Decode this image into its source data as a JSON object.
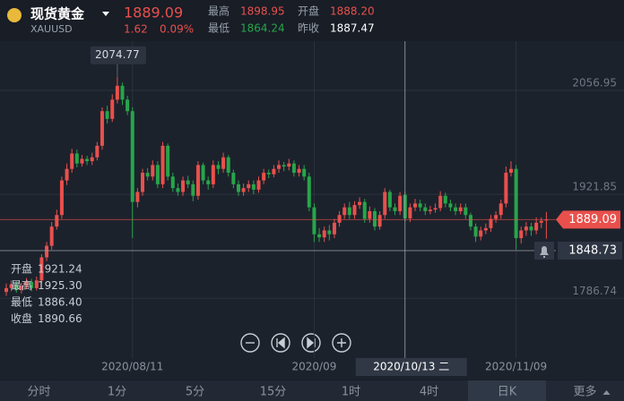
{
  "header": {
    "name": "现货黄金",
    "symbol": "XAUUSD",
    "price": "1889.09",
    "change": "1.62",
    "change_pct": "0.09%",
    "stats": [
      {
        "label": "最高",
        "value": "1898.95"
      },
      {
        "label": "开盘",
        "value": "1888.20"
      },
      {
        "label": "最低",
        "value": "1864.24"
      },
      {
        "label": "昨收",
        "value": "1887.47"
      }
    ]
  },
  "chart_data": {
    "type": "candlestick",
    "open": [
      1795,
      1800,
      1805,
      1798,
      1803,
      1808,
      1800,
      1810,
      1840,
      1855,
      1880,
      1895,
      1940,
      1955,
      1975,
      1962,
      1968,
      1965,
      1970,
      1985,
      2030,
      2020,
      2045,
      2063,
      2045,
      2030,
      1912,
      1925,
      1950,
      1945,
      1960,
      1935,
      1985,
      1945,
      1930,
      1925,
      1940,
      1935,
      1920,
      1960,
      1940,
      1935,
      1960,
      1955,
      1970,
      1950,
      1935,
      1925,
      1930,
      1935,
      1928,
      1940,
      1950,
      1948,
      1955,
      1960,
      1958,
      1962,
      1950,
      1955,
      1945,
      1905,
      1870,
      1866,
      1875,
      1870,
      1885,
      1895,
      1905,
      1895,
      1908,
      1912,
      1890,
      1900,
      1880,
      1895,
      1925,
      1905,
      1900,
      1921.24,
      1890.66,
      1905,
      1910,
      1905,
      1900,
      1902,
      1904,
      1920,
      1910,
      1905,
      1900,
      1905,
      1895,
      1880,
      1867,
      1875,
      1878,
      1890,
      1895,
      1910,
      1950,
      1955,
      1865,
      1875,
      1880,
      1875,
      1885,
      1888.2
    ],
    "high": [
      1806,
      1810,
      1809,
      1807,
      1813,
      1812,
      1815,
      1844,
      1860,
      1886,
      1902,
      1945,
      1962,
      1981,
      1980,
      1973,
      1972,
      1976,
      1990,
      2035,
      2037,
      2052,
      2074.77,
      2067,
      2050,
      2035,
      1930,
      1955,
      1956,
      1966,
      1965,
      1990,
      1988,
      1950,
      1936,
      1945,
      1946,
      1940,
      1965,
      1963,
      1945,
      1966,
      1965,
      1976,
      1973,
      1954,
      1940,
      1936,
      1940,
      1940,
      1945,
      1955,
      1954,
      1960,
      1966,
      1964,
      1968,
      1966,
      1960,
      1960,
      1950,
      1910,
      1878,
      1880,
      1882,
      1890,
      1900,
      1910,
      1912,
      1913,
      1918,
      1916,
      1906,
      1904,
      1900,
      1930,
      1928,
      1910,
      1925,
      1925.3,
      1910,
      1916,
      1915,
      1910,
      1907,
      1910,
      1926,
      1924,
      1915,
      1910,
      1910,
      1910,
      1898,
      1884,
      1880,
      1884,
      1895,
      1900,
      1915,
      1958,
      1965,
      1960,
      1880,
      1886,
      1885,
      1892,
      1892,
      1898.95
    ],
    "low": [
      1790,
      1796,
      1794,
      1793,
      1799,
      1796,
      1797,
      1806,
      1835,
      1850,
      1876,
      1890,
      1934,
      1950,
      1957,
      1958,
      1960,
      1960,
      1966,
      1980,
      2014,
      2016,
      2040,
      2038,
      2025,
      1865,
      1905,
      1920,
      1940,
      1940,
      1930,
      1930,
      1940,
      1925,
      1920,
      1920,
      1930,
      1913,
      1915,
      1935,
      1928,
      1930,
      1948,
      1950,
      1945,
      1930,
      1920,
      1920,
      1925,
      1922,
      1924,
      1935,
      1943,
      1944,
      1950,
      1952,
      1953,
      1945,
      1945,
      1940,
      1900,
      1860,
      1860,
      1860,
      1862,
      1865,
      1880,
      1890,
      1890,
      1890,
      1903,
      1885,
      1885,
      1875,
      1876,
      1890,
      1900,
      1895,
      1895,
      1886.4,
      1886,
      1900,
      1900,
      1895,
      1896,
      1898,
      1900,
      1905,
      1900,
      1895,
      1896,
      1890,
      1875,
      1860,
      1862,
      1870,
      1873,
      1885,
      1890,
      1905,
      1945,
      1850,
      1858,
      1868,
      1868,
      1870,
      1878,
      1864.24
    ],
    "close": [
      1800,
      1805,
      1798,
      1803,
      1808,
      1800,
      1810,
      1840,
      1855,
      1880,
      1895,
      1940,
      1955,
      1975,
      1962,
      1968,
      1965,
      1970,
      1985,
      2030,
      2020,
      2045,
      2063,
      2045,
      2030,
      1912,
      1925,
      1950,
      1945,
      1960,
      1935,
      1985,
      1945,
      1930,
      1925,
      1940,
      1935,
      1920,
      1960,
      1940,
      1935,
      1960,
      1955,
      1970,
      1950,
      1935,
      1925,
      1930,
      1935,
      1928,
      1940,
      1950,
      1948,
      1955,
      1960,
      1958,
      1962,
      1950,
      1955,
      1945,
      1905,
      1870,
      1866,
      1875,
      1870,
      1885,
      1895,
      1905,
      1895,
      1908,
      1912,
      1890,
      1900,
      1880,
      1895,
      1925,
      1905,
      1900,
      1920,
      1890.66,
      1905,
      1910,
      1905,
      1900,
      1902,
      1904,
      1920,
      1910,
      1905,
      1900,
      1905,
      1895,
      1880,
      1867,
      1875,
      1878,
      1890,
      1895,
      1910,
      1950,
      1955,
      1865,
      1875,
      1880,
      1875,
      1885,
      1887.47,
      1889.09
    ],
    "up_color": "#e9504c",
    "down_color": "#27a54a",
    "ylim": [
      1681.2,
      2121.0
    ],
    "yticks": [
      2056.95,
      1921.85,
      1786.74
    ],
    "xticks": [
      {
        "value": 25,
        "label": "2020/08/11"
      },
      {
        "value": 61,
        "label": "2020/09"
      },
      {
        "value": 101,
        "label": "2020/11/09"
      }
    ],
    "max_marker": 2074.77,
    "last_price": 1889.09,
    "crosshair": {
      "date": {
        "value": 79,
        "label": "2020/10/13 二"
      },
      "price": 1848.73,
      "info": [
        {
          "label": "开盘",
          "value": "1921.24"
        },
        {
          "label": "最高",
          "value": "1925.30"
        },
        {
          "label": "最低",
          "value": "1886.40"
        },
        {
          "label": "收盘",
          "value": "1890.66"
        }
      ]
    }
  },
  "tabs": [
    "分时",
    "1分",
    "5分",
    "15分",
    "1时",
    "4时",
    "日K",
    "更多"
  ],
  "active_tab": "日K"
}
